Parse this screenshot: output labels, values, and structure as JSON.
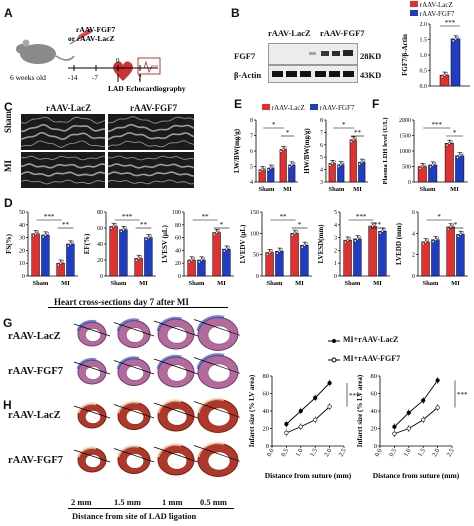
{
  "panels": {
    "A": "A",
    "B": "B",
    "C": "C",
    "D": "D",
    "E": "E",
    "F": "F",
    "G": "G",
    "H": "H"
  },
  "panelA": {
    "age": "6 weeks old",
    "treatment": "rAAV-FGF7\nor rAAV-LacZ",
    "treatment_line1": "rAAV-FGF7",
    "treatment_line2": "or rAAV-LacZ",
    "timeline_ticks": [
      "-14",
      "-7",
      "0",
      "7"
    ],
    "surgery": "LAD",
    "readout": "Echocardiography"
  },
  "panelB": {
    "groups": [
      "rAAV-LacZ",
      "rAAV-FGF7"
    ],
    "rows": [
      "FGF7",
      "β-Actin"
    ],
    "sizes": [
      "28KD",
      "43KD"
    ],
    "legend": [
      "rAAV-LacZ",
      "rAAV-FGF7"
    ],
    "colors": {
      "lacz": "#e03030",
      "fgf7": "#1f3cc4"
    }
  },
  "panelC": {
    "cols": [
      "rAAV-LacZ",
      "rAAV-FGF7"
    ],
    "rows": [
      "Sham",
      "MI"
    ]
  },
  "panelD": {
    "xcats": [
      "Sham",
      "MI"
    ]
  },
  "panelE": {
    "legend": [
      "rAAV-LacZ",
      "rAAV-FGF7"
    ]
  },
  "panelG": {
    "title": "Heart cross-sections day 7 after MI",
    "rows": [
      "rAAV-LacZ",
      "rAAV-FGF7"
    ]
  },
  "panelH": {
    "rows": [
      "rAAV-LacZ",
      "rAAV-FGF7"
    ],
    "distances": [
      "2 mm",
      "1.5 mm",
      "1 mm",
      "0.5 mm"
    ],
    "xlabel": "Distance from site of LAD ligation"
  },
  "infarct_legend": [
    "MI+rAAV-LacZ",
    "MI+rAAV-FGF7"
  ],
  "chart_data": [
    {
      "id": "B",
      "type": "bar",
      "ylabel": "FGF7/β-Actin",
      "ylim": [
        0,
        2.0
      ],
      "yticks": [
        "0.0",
        "0.5",
        "1.0",
        "1.5",
        "2.0"
      ],
      "sig": "***",
      "series": [
        {
          "name": "rAAV-LacZ",
          "values": [
            0.35
          ]
        },
        {
          "name": "rAAV-FGF7",
          "values": [
            1.52
          ]
        }
      ]
    },
    {
      "id": "D1",
      "type": "bar",
      "ylabel": "FS(%)",
      "ylim": [
        0,
        50
      ],
      "yticks": [
        "0",
        "10",
        "20",
        "30",
        "40",
        "50"
      ],
      "categories": [
        "Sham",
        "MI"
      ],
      "sig": [
        "***",
        "**"
      ],
      "series": [
        {
          "name": "rAAV-LacZ",
          "values": [
            33,
            10
          ]
        },
        {
          "name": "rAAV-FGF7",
          "values": [
            32,
            25
          ]
        }
      ]
    },
    {
      "id": "D2",
      "type": "bar",
      "ylabel": "EF(%)",
      "ylim": [
        0,
        80
      ],
      "yticks": [
        "0",
        "20",
        "40",
        "60",
        "80"
      ],
      "categories": [
        "Sham",
        "MI"
      ],
      "sig": [
        "***",
        "**"
      ],
      "series": [
        {
          "name": "rAAV-LacZ",
          "values": [
            62,
            22
          ]
        },
        {
          "name": "rAAV-FGF7",
          "values": [
            58,
            48
          ]
        }
      ]
    },
    {
      "id": "D3",
      "type": "bar",
      "ylabel": "LVESV (μL)",
      "ylim": [
        0,
        100
      ],
      "yticks": [
        "0",
        "20",
        "40",
        "60",
        "80",
        "100"
      ],
      "categories": [
        "Sham",
        "MI"
      ],
      "sig": [
        "**",
        "*"
      ],
      "series": [
        {
          "name": "rAAV-LacZ",
          "values": [
            25,
            68
          ]
        },
        {
          "name": "rAAV-FGF7",
          "values": [
            25,
            42
          ]
        }
      ]
    },
    {
      "id": "D4",
      "type": "bar",
      "ylabel": "LVEDV (μL)",
      "ylim": [
        0,
        150
      ],
      "yticks": [
        "0",
        "50",
        "100",
        "150"
      ],
      "categories": [
        "Sham",
        "MI"
      ],
      "sig": [
        "**",
        "*"
      ],
      "series": [
        {
          "name": "rAAV-LacZ",
          "values": [
            55,
            100
          ]
        },
        {
          "name": "rAAV-FGF7",
          "values": [
            58,
            72
          ]
        }
      ]
    },
    {
      "id": "D5",
      "type": "bar",
      "ylabel": "LVESD(mm)",
      "ylim": [
        0,
        5
      ],
      "yticks": [
        "0",
        "1",
        "2",
        "3",
        "4",
        "5"
      ],
      "categories": [
        "Sham",
        "MI"
      ],
      "sig": [
        "***",
        "**"
      ],
      "series": [
        {
          "name": "rAAV-LacZ",
          "values": [
            2.8,
            3.9
          ]
        },
        {
          "name": "rAAV-FGF7",
          "values": [
            2.9,
            3.5
          ]
        }
      ]
    },
    {
      "id": "D6",
      "type": "bar",
      "ylabel": "LVEDD (mm)",
      "ylim": [
        0,
        6
      ],
      "yticks": [
        "0",
        "2",
        "4",
        "6"
      ],
      "categories": [
        "Sham",
        "MI"
      ],
      "sig": [
        "*",
        "*"
      ],
      "series": [
        {
          "name": "rAAV-LacZ",
          "values": [
            3.2,
            4.6
          ]
        },
        {
          "name": "rAAV-FGF7",
          "values": [
            3.4,
            3.9
          ]
        }
      ]
    },
    {
      "id": "E1",
      "type": "bar",
      "ylabel": "LW/BW(mg/g)",
      "ylim": [
        4,
        8
      ],
      "yticks": [
        "4",
        "5",
        "6",
        "7",
        "8"
      ],
      "categories": [
        "Sham",
        "MI"
      ],
      "sig": [
        "*",
        "*"
      ],
      "series": [
        {
          "name": "rAAV-LacZ",
          "values": [
            4.8,
            6.1
          ]
        },
        {
          "name": "rAAV-FGF7",
          "values": [
            4.9,
            5.1
          ]
        }
      ]
    },
    {
      "id": "E2",
      "type": "bar",
      "ylabel": "HW/BW(mg/g)",
      "ylim": [
        3,
        8
      ],
      "yticks": [
        "3",
        "4",
        "5",
        "6",
        "7",
        "8"
      ],
      "categories": [
        "Sham",
        "MI"
      ],
      "sig": [
        "*",
        "**"
      ],
      "series": [
        {
          "name": "rAAV-LacZ",
          "values": [
            4.5,
            6.4
          ]
        },
        {
          "name": "rAAV-FGF7",
          "values": [
            4.4,
            4.6
          ]
        }
      ]
    },
    {
      "id": "F",
      "type": "bar",
      "ylabel": "Plasma LDH level (U/L)",
      "ylim": [
        0,
        2000
      ],
      "yticks": [
        "0",
        "500",
        "1000",
        "1500",
        "2000"
      ],
      "categories": [
        "Sham",
        "MI"
      ],
      "sig": [
        "***",
        "*"
      ],
      "series": [
        {
          "name": "rAAV-LacZ",
          "values": [
            500,
            1250
          ]
        },
        {
          "name": "rAAV-FGF7",
          "values": [
            550,
            850
          ]
        }
      ]
    },
    {
      "id": "G_line",
      "type": "line",
      "ylabel": "Infarct size (% LV area)",
      "xlabel": "Distance from suture (mm)",
      "x": [
        0.5,
        1.0,
        1.5,
        2.0
      ],
      "xticks": [
        "0.0",
        "0.5",
        "1.0",
        "1.5",
        "2.0",
        "2.5"
      ],
      "ylim": [
        0,
        80
      ],
      "yticks": [
        "0",
        "20",
        "40",
        "60",
        "80"
      ],
      "sig": "***",
      "series": [
        {
          "name": "MI+rAAV-LacZ",
          "values": [
            25,
            40,
            55,
            72
          ]
        },
        {
          "name": "MI+rAAV-FGF7",
          "values": [
            15,
            22,
            30,
            45
          ]
        }
      ]
    },
    {
      "id": "H_line",
      "type": "line",
      "ylabel": "Infarct size (% LV area)",
      "xlabel": "Distance from suture (mm)",
      "x": [
        0.5,
        1.0,
        1.5,
        2.0
      ],
      "xticks": [
        "0.0",
        "0.5",
        "1.0",
        "1.5",
        "2.0",
        "2.5"
      ],
      "ylim": [
        0,
        80
      ],
      "yticks": [
        "0",
        "20",
        "40",
        "60",
        "80"
      ],
      "sig": "***",
      "series": [
        {
          "name": "MI+rAAV-LacZ",
          "values": [
            22,
            38,
            52,
            75
          ]
        },
        {
          "name": "MI+rAAV-FGF7",
          "values": [
            14,
            20,
            30,
            44
          ]
        }
      ]
    }
  ]
}
